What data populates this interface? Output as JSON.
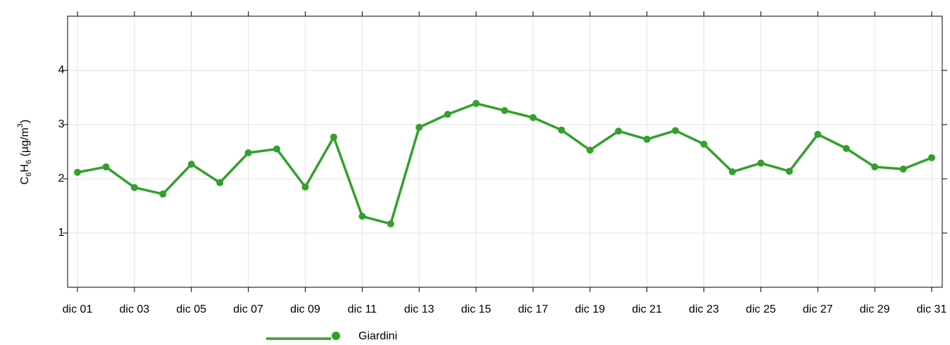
{
  "chart_data": {
    "type": "line",
    "ylabel": [
      "C",
      "6",
      "H",
      "6",
      " (µg/m",
      "3",
      ")"
    ],
    "categories": [
      "dic 01",
      null,
      "dic 03",
      null,
      "dic 05",
      null,
      "dic 07",
      null,
      "dic 09",
      null,
      "dic 11",
      null,
      "dic 13",
      null,
      "dic 15",
      null,
      "dic 17",
      null,
      "dic 19",
      null,
      "dic 21",
      null,
      "dic 23",
      null,
      "dic 25",
      null,
      "dic 27",
      null,
      "dic 29",
      null,
      "dic 31"
    ],
    "series": [
      {
        "name": "Giardini",
        "color": "#33a02c",
        "values": [
          2.12,
          2.22,
          1.84,
          1.72,
          2.27,
          1.93,
          2.48,
          2.55,
          1.85,
          2.77,
          1.31,
          1.17,
          2.95,
          3.19,
          3.39,
          3.26,
          3.13,
          2.9,
          2.53,
          2.88,
          2.73,
          2.89,
          2.64,
          2.13,
          2.29,
          2.14,
          2.82,
          2.56,
          2.22,
          2.18,
          2.39
        ]
      }
    ],
    "ylim": [
      0,
      5
    ],
    "yticks": [
      1,
      2,
      3,
      4
    ],
    "grid": true,
    "legend": "bottom"
  }
}
